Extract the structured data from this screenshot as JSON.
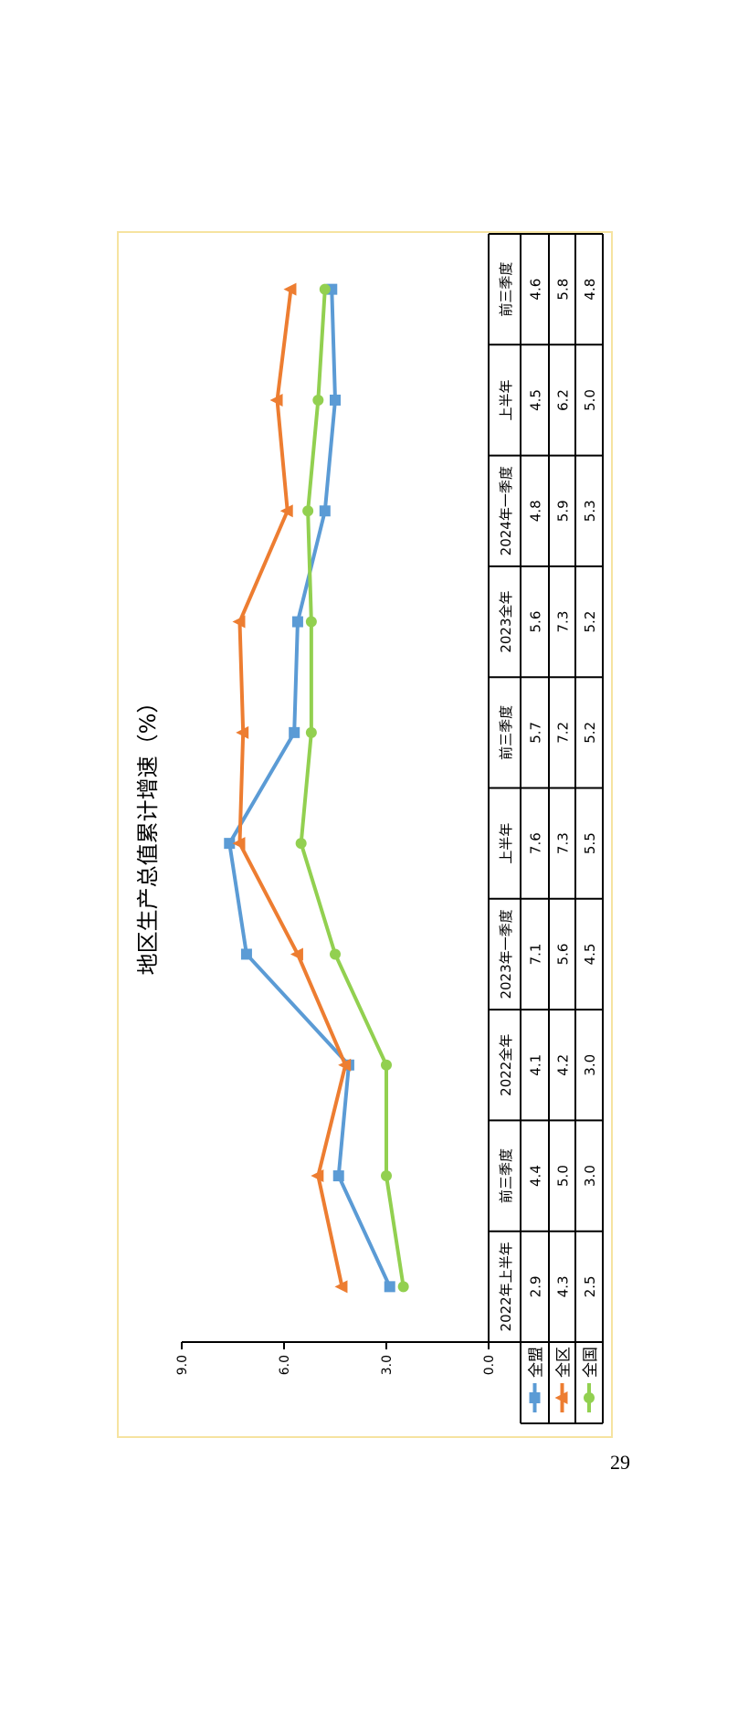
{
  "page_number": "29",
  "chart_data": {
    "type": "line",
    "title": "地区生产总值累计增速（%）",
    "categories": [
      "2022年上半年",
      "前三季度",
      "2022全年",
      "2023年一季度",
      "上半年",
      "前三季度",
      "2023全年",
      "2024年一季度",
      "上半年",
      "前三季度"
    ],
    "ylim": [
      0,
      9
    ],
    "yticks": [
      "0.0",
      "3.0",
      "6.0",
      "9.0"
    ],
    "grid": false,
    "legend": "data-table",
    "orientation": "rotated 90° counterclockwise",
    "series": [
      {
        "name": "全盟",
        "color": "#5b9bd5",
        "marker": "square",
        "values": [
          2.9,
          4.4,
          4.1,
          7.1,
          7.6,
          5.7,
          5.6,
          4.8,
          4.5,
          4.6
        ],
        "labels": [
          "2.9",
          "4.4",
          "4.1",
          "7.1",
          "7.6",
          "5.7",
          "5.6",
          "4.8",
          "4.5",
          "4.6"
        ]
      },
      {
        "name": "全区",
        "color": "#ed7d31",
        "marker": "triangle",
        "values": [
          4.3,
          5.0,
          4.2,
          5.6,
          7.3,
          7.2,
          7.3,
          5.9,
          6.2,
          5.8
        ],
        "labels": [
          "4.3",
          "5.0",
          "4.2",
          "5.6",
          "7.3",
          "7.2",
          "7.3",
          "5.9",
          "6.2",
          "5.8"
        ]
      },
      {
        "name": "全国",
        "color": "#92d050",
        "marker": "circle",
        "values": [
          2.5,
          3.0,
          3.0,
          4.5,
          5.5,
          5.2,
          5.2,
          5.3,
          5.0,
          4.8
        ],
        "labels": [
          "2.5",
          "3.0",
          "3.0",
          "4.5",
          "5.5",
          "5.2",
          "5.2",
          "5.3",
          "5.0",
          "4.8"
        ]
      }
    ]
  }
}
